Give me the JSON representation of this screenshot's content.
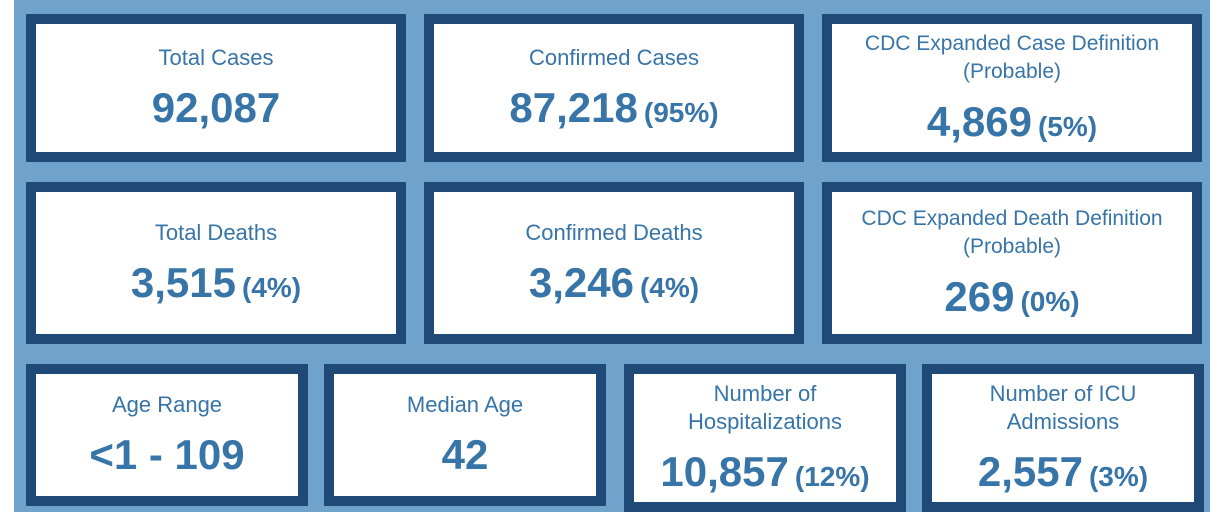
{
  "colors": {
    "background": "#6fa3cc",
    "card_border": "#1f4a78",
    "text": "#3774a8",
    "card_fill": "#ffffff"
  },
  "cards": {
    "total_cases": {
      "label": "Total Cases",
      "value": "92,087",
      "pct": ""
    },
    "confirmed_cases": {
      "label": "Confirmed Cases",
      "value": "87,218",
      "pct": "(95%)"
    },
    "probable_cases": {
      "label_line1": "CDC Expanded Case Definition",
      "label_line2": "(Probable)",
      "value": "4,869",
      "pct": "(5%)"
    },
    "total_deaths": {
      "label": "Total Deaths",
      "value": "3,515",
      "pct": "(4%)"
    },
    "confirmed_deaths": {
      "label": "Confirmed Deaths",
      "value": "3,246",
      "pct": "(4%)"
    },
    "probable_deaths": {
      "label_line1": "CDC Expanded Death Definition",
      "label_line2": "(Probable)",
      "value": "269",
      "pct": "(0%)"
    },
    "age_range": {
      "label": "Age Range",
      "value": "<1 - 109",
      "pct": ""
    },
    "median_age": {
      "label": "Median Age",
      "value": "42",
      "pct": ""
    },
    "hospitalizations": {
      "label_line1": "Number of",
      "label_line2": "Hospitalizations",
      "value": "10,857",
      "pct": "(12%)"
    },
    "icu_admissions": {
      "label_line1": "Number of ICU",
      "label_line2": "Admissions",
      "value": "2,557",
      "pct": "(3%)"
    }
  }
}
